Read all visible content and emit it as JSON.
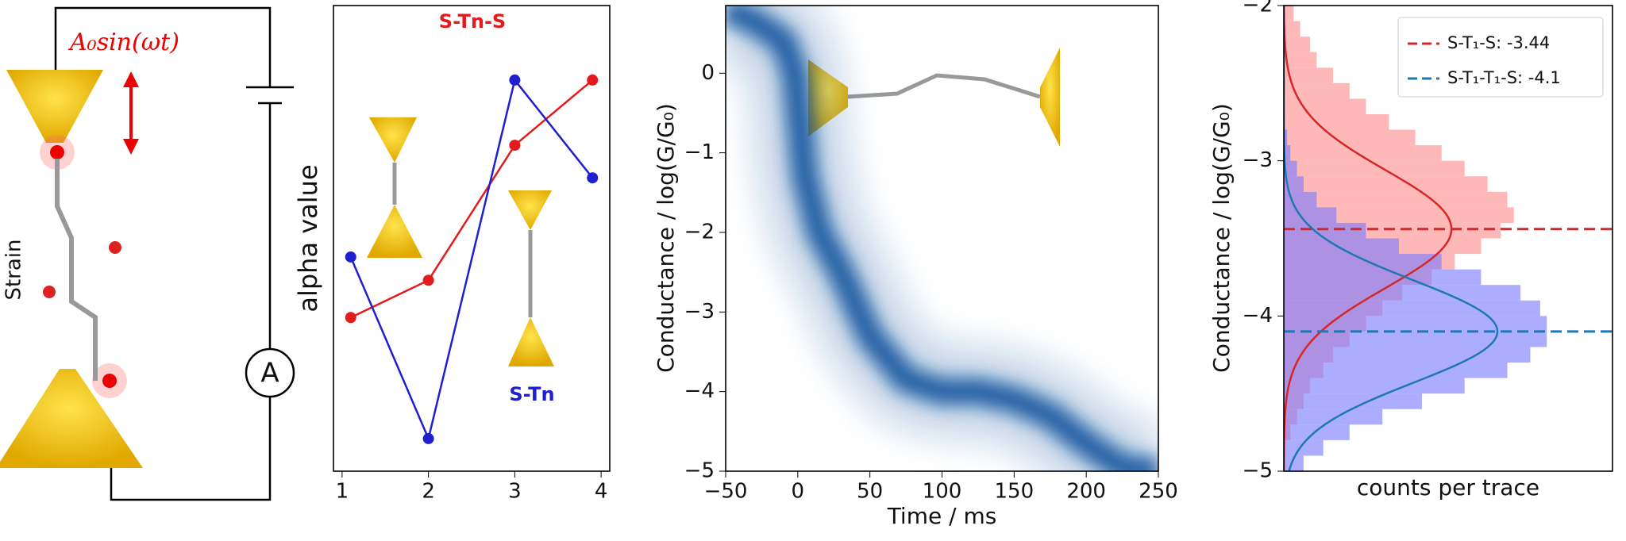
{
  "schematic": {
    "excitation": "A₀sin(ωt)",
    "strain_label": "Strain",
    "meter": "A"
  },
  "chart_data": [
    {
      "type": "line",
      "ylabel": "alpha value",
      "x": [
        1.1,
        2,
        3,
        3.9
      ],
      "xlim": [
        0.9,
        4.1
      ],
      "xticks": [
        1,
        2,
        3,
        4
      ],
      "ylim": [
        0,
        1
      ],
      "series": [
        {
          "name": "S-Tn-S",
          "color": "#e41a1c",
          "values": [
            0.33,
            0.41,
            0.7,
            0.84
          ]
        },
        {
          "name": "S-Tn",
          "color": "#1f1fd0",
          "values": [
            0.46,
            0.07,
            0.84,
            0.63
          ]
        }
      ]
    },
    {
      "type": "density",
      "xlabel": "Time / ms",
      "ylabel": "Conductance / log(G/G₀)",
      "color": "#08519c",
      "x": [
        -50,
        -30,
        -10,
        -2,
        5,
        15,
        30,
        50,
        75,
        100,
        125,
        150,
        175,
        200,
        225,
        250
      ],
      "values": [
        0.8,
        0.65,
        0.4,
        0,
        -1.3,
        -2.0,
        -2.5,
        -3.3,
        -3.85,
        -4.0,
        -4.0,
        -4.1,
        -4.3,
        -4.65,
        -4.95,
        -5.0
      ],
      "xlim": [
        -50,
        250
      ],
      "xticks": [
        {
          "value": -50,
          "label": "−50"
        },
        0,
        50,
        100,
        150,
        200,
        250
      ],
      "ylim": [
        -5,
        0.85
      ],
      "yticks": [
        {
          "value": -5,
          "label": "−5"
        },
        {
          "value": -4,
          "label": "−4"
        },
        {
          "value": -3,
          "label": "−3"
        },
        {
          "value": -2,
          "label": "−2"
        },
        {
          "value": -1,
          "label": "−1"
        },
        0
      ]
    },
    {
      "type": "histogram",
      "xlabel": "counts per trace",
      "ylabel": "Conductance / log(G/G₀)",
      "xlim": [
        0,
        1
      ],
      "legend": "upper right",
      "ylim": [
        -5,
        -2
      ],
      "yticks": [
        {
          "value": -5,
          "label": "−5"
        },
        {
          "value": -4,
          "label": "−4"
        },
        {
          "value": -3,
          "label": "−3"
        },
        {
          "value": -2,
          "label": "−2"
        }
      ],
      "bins": [
        -5,
        -4.9,
        -4.8,
        -4.7,
        -4.6,
        -4.5,
        -4.4,
        -4.3,
        -4.2,
        -4.1,
        -4,
        -3.9,
        -3.8,
        -3.7,
        -3.6,
        -3.5,
        -3.4,
        -3.3,
        -3.2,
        -3.1,
        -3,
        -2.9,
        -2.8,
        -2.7,
        -2.6,
        -2.5,
        -2.4,
        -2.3,
        -2.2,
        -2.1,
        -2
      ],
      "series": [
        {
          "name": "S-T₁-S: -3.44",
          "color": "#d62728",
          "fill": "#f88",
          "mean": -3.44,
          "sd": 0.38,
          "peak": 0.51,
          "values": [
            0,
            0,
            0.02,
            0.04,
            0.06,
            0.08,
            0.12,
            0.15,
            0.2,
            0.25,
            0.3,
            0.36,
            0.45,
            0.52,
            0.6,
            0.66,
            0.7,
            0.68,
            0.62,
            0.55,
            0.48,
            0.4,
            0.32,
            0.25,
            0.2,
            0.15,
            0.1,
            0.08,
            0.05,
            0.03
          ]
        },
        {
          "name": "S-T₁-T₁-S: -4.1",
          "color": "#1f77b4",
          "fill": "#77f",
          "mean": -4.1,
          "sd": 0.33,
          "peak": 0.65,
          "values": [
            0.06,
            0.12,
            0.2,
            0.3,
            0.42,
            0.55,
            0.68,
            0.75,
            0.8,
            0.8,
            0.78,
            0.72,
            0.6,
            0.48,
            0.35,
            0.25,
            0.16,
            0.1,
            0.06,
            0.04,
            0.02,
            0.01,
            0,
            0,
            0,
            0,
            0,
            0,
            0,
            0
          ]
        }
      ]
    }
  ]
}
